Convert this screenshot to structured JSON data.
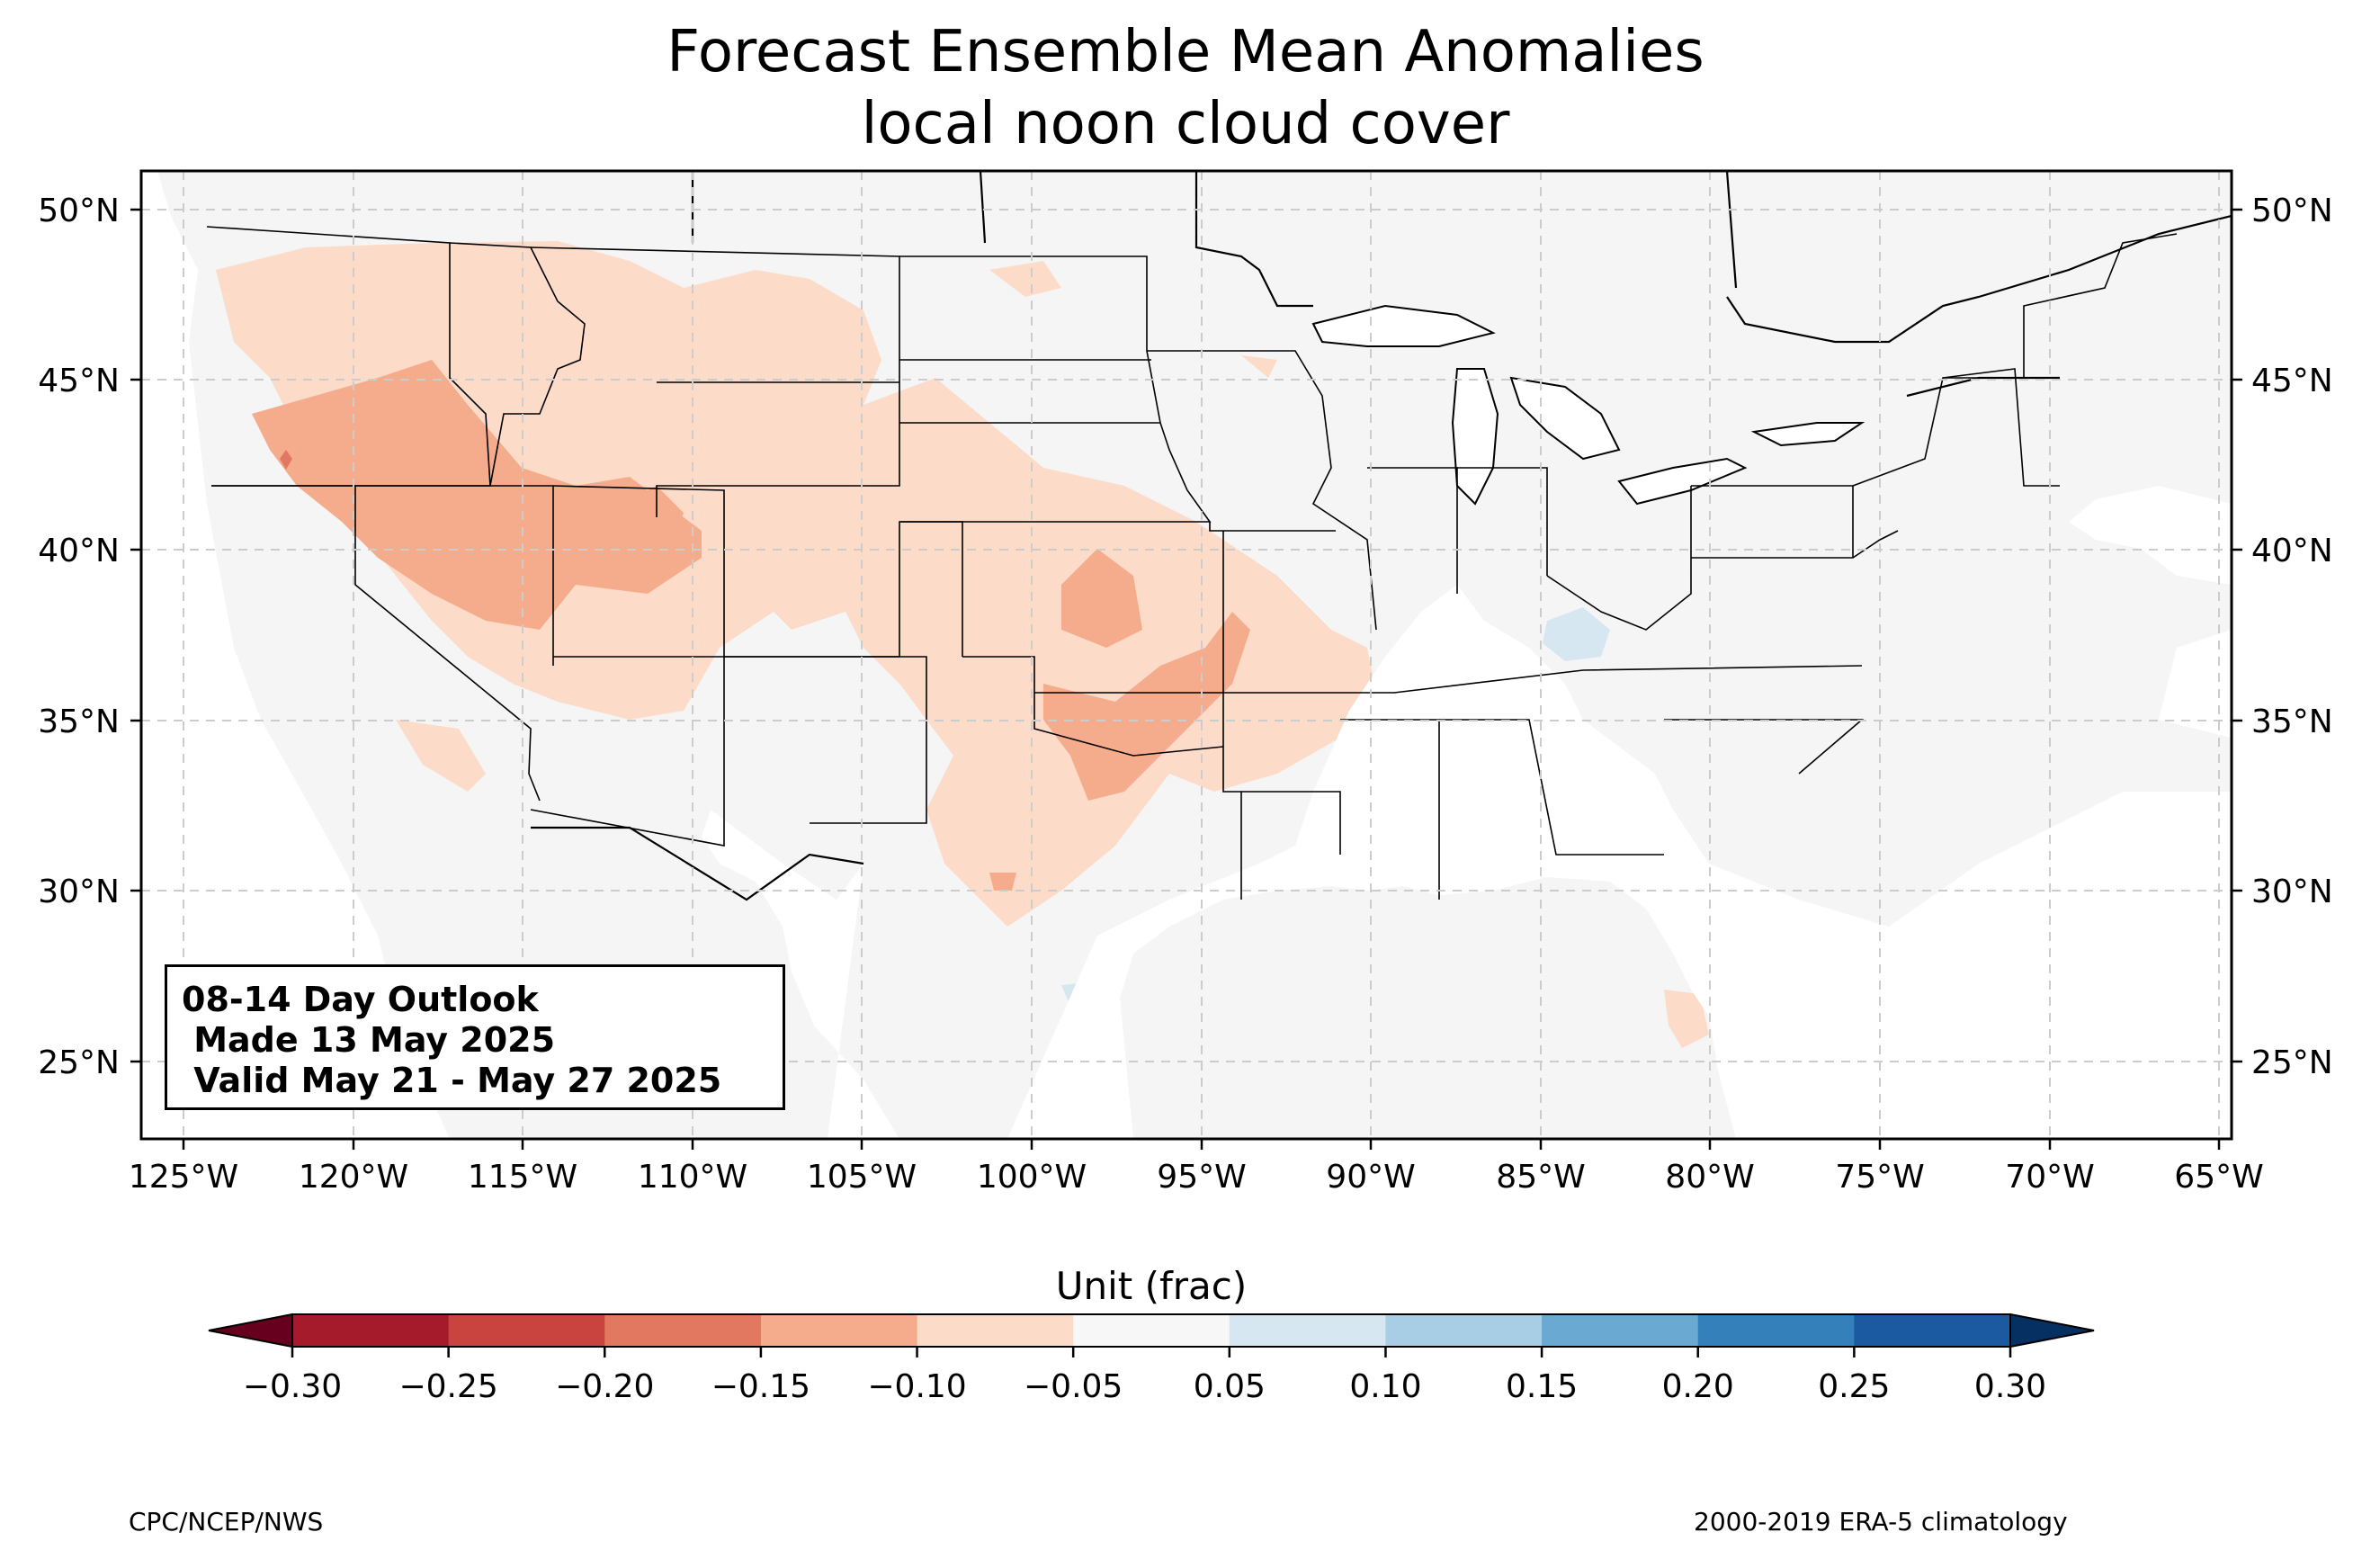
{
  "title": {
    "line1": "Forecast Ensemble Mean Anomalies",
    "line2": "local noon cloud cover"
  },
  "outlook_box": {
    "line1": "08-14 Day Outlook",
    "line2": " Made 13 May 2025",
    "line3": " Valid May 21 - May 27 2025"
  },
  "map": {
    "lon_ticks": [
      "125°W",
      "120°W",
      "115°W",
      "110°W",
      "105°W",
      "100°W",
      "95°W",
      "90°W",
      "85°W",
      "80°W",
      "75°W",
      "70°W",
      "65°W"
    ],
    "lat_ticks": [
      "50°N",
      "45°N",
      "40°N",
      "35°N",
      "30°N",
      "25°N"
    ],
    "lon_range": [
      -126.3,
      -64.8
    ],
    "lat_range": [
      22.8,
      51.2
    ],
    "gridlines": true,
    "land_color": "#f5f5f5"
  },
  "colorbar": {
    "label": "Unit (frac)",
    "ticks": [
      "−0.30",
      "−0.25",
      "−0.20",
      "−0.15",
      "−0.10",
      "−0.05",
      "0.05",
      "0.10",
      "0.15",
      "0.20",
      "0.25",
      "0.30"
    ],
    "colors": [
      "#a51b2b",
      "#c9433f",
      "#e1785f",
      "#f4ac8c",
      "#fcdbc8",
      "#f7f7f7",
      "#d6e7f1",
      "#a7cee4",
      "#6aaad2",
      "#3480ba",
      "#1b5aa0"
    ],
    "extend_min_color": "#67001f",
    "extend_max_color": "#053061"
  },
  "footer": {
    "left": "CPC/NCEP/NWS",
    "right": "2000-2019 ERA-5 climatology"
  }
}
